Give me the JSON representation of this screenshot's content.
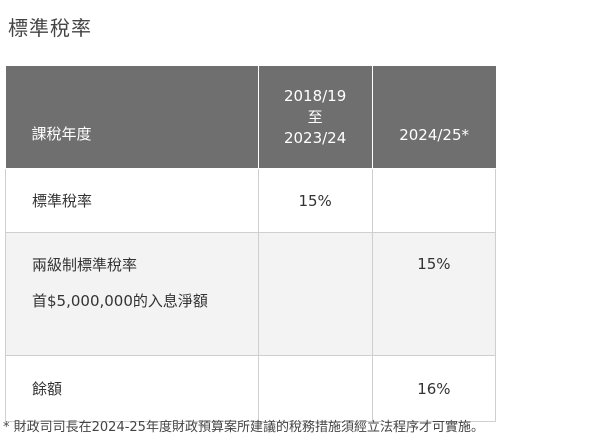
{
  "title": "標準稅率",
  "table": {
    "headers": {
      "col1": "課稅年度",
      "col2_line1": "2018/19",
      "col2_line2": "至",
      "col2_line3": "2023/24",
      "col3": "2024/25*"
    },
    "rows": [
      {
        "label": "標準稅率",
        "sub_label": "",
        "col2": "15%",
        "col3": ""
      },
      {
        "label": "兩級制標準稅率",
        "sub_label": "首$5,000,000的入息淨額",
        "col2": "",
        "col3": "15%"
      },
      {
        "label": "餘額",
        "sub_label": "",
        "col2": "",
        "col3": "16%"
      }
    ]
  },
  "footnote": "* 財政司司長在2024-25年度財政預算案所建議的稅務措施須經立法程序才可實施。"
}
